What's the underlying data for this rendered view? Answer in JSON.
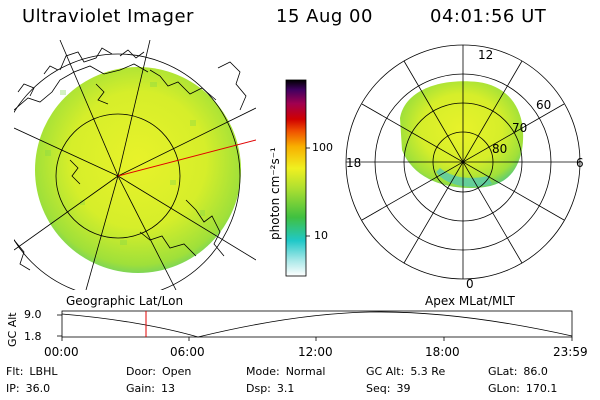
{
  "header": {
    "title": "Ultraviolet Imager",
    "date": "15 Aug 00",
    "time": "04:01:56 UT"
  },
  "colorbar": {
    "unit_label": "photon cm⁻²s⁻¹",
    "ticks": [
      "100",
      "10"
    ]
  },
  "polar_plot": {
    "mlt_labels": [
      "12",
      "6",
      "0",
      "18"
    ],
    "lat_labels": [
      "60",
      "70",
      "80"
    ]
  },
  "projection_labels": {
    "left": "Geographic Lat/Lon",
    "right": "Apex MLat/MLT"
  },
  "altitude_plot": {
    "ylabel": "GC Alt",
    "yticks": [
      "9.0",
      "1.8"
    ],
    "xticks": [
      "00:00",
      "06:00",
      "12:00",
      "18:00",
      "23:59"
    ]
  },
  "info": {
    "row1": [
      {
        "key": "Flt:",
        "val": "LBHL"
      },
      {
        "key": "Door:",
        "val": "Open"
      },
      {
        "key": "Mode:",
        "val": "Normal"
      },
      {
        "key": "GC Alt:",
        "val": "5.3 Re"
      },
      {
        "key": "GLat:",
        "val": "86.0"
      }
    ],
    "row2": [
      {
        "key": "IP:",
        "val": "36.0"
      },
      {
        "key": "Gain:",
        "val": "13"
      },
      {
        "key": "Dsp:",
        "val": "3.1"
      },
      {
        "key": "Seq:",
        "val": "39"
      },
      {
        "key": "GLon:",
        "val": "170.1"
      }
    ]
  }
}
